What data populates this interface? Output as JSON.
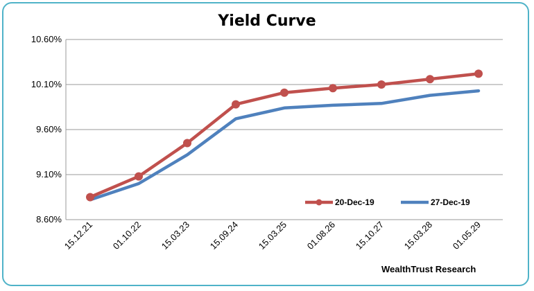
{
  "chart_data": {
    "type": "line",
    "title": "Yield Curve",
    "categories": [
      "15.12.21",
      "01.10.22",
      "15.03.23",
      "15.09.24",
      "15.03.25",
      "01.08.26",
      "15.10.27",
      "15.03.28",
      "01.05.29"
    ],
    "y_ticks": [
      "8.60%",
      "9.10%",
      "9.60%",
      "10.10%",
      "10.60%"
    ],
    "ylim": [
      8.6,
      10.6
    ],
    "grid": true,
    "legend_position": "bottom-right",
    "series": [
      {
        "name": "20-Dec-19",
        "color": "#c0504d",
        "marker": true,
        "values": [
          8.85,
          9.08,
          9.45,
          9.88,
          10.01,
          10.06,
          10.1,
          10.16,
          10.22
        ]
      },
      {
        "name": "27-Dec-19",
        "color": "#4f81bd",
        "marker": false,
        "values": [
          8.82,
          9.0,
          9.32,
          9.72,
          9.84,
          9.87,
          9.89,
          9.98,
          10.03
        ]
      }
    ]
  },
  "credit": "WealthTrust Research"
}
